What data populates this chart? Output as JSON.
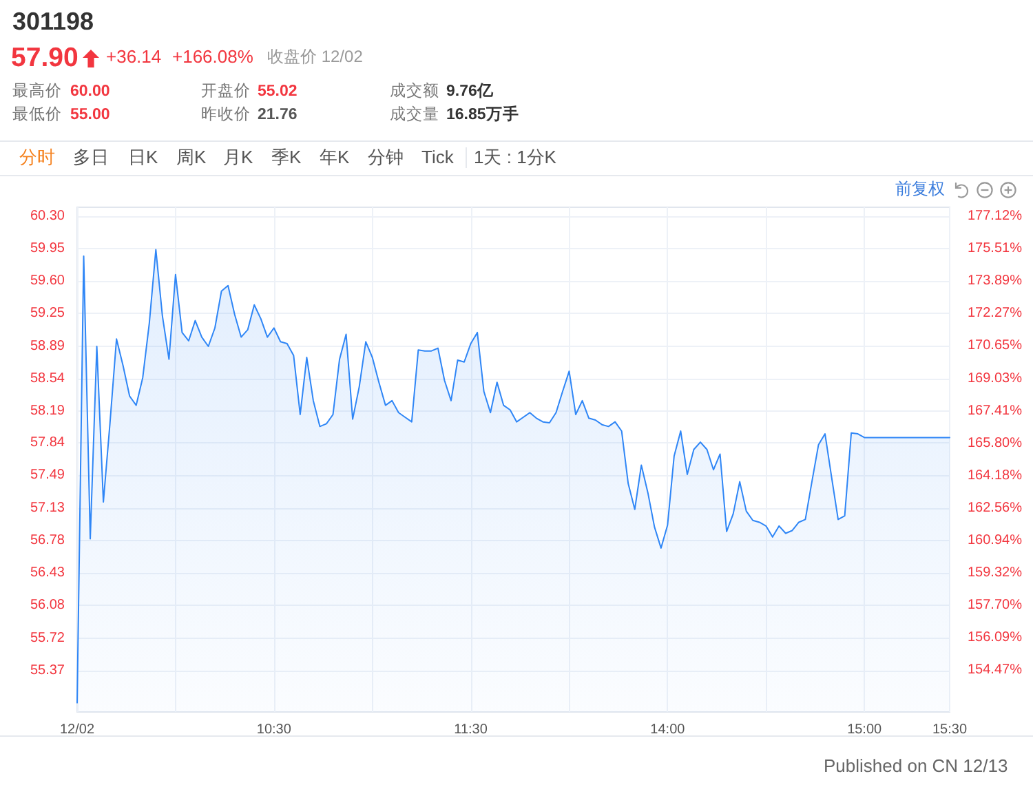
{
  "chart_data": {
    "type": "area",
    "title": "301198",
    "annotations": [
      "57.90",
      "+36.14",
      "+166.08%",
      "收盘价 12/02",
      "最高价",
      "60.00",
      "开盘价",
      "55.02",
      "成交额",
      "9.76亿",
      "最低价",
      "55.00",
      "昨收价",
      "21.76",
      "成交量",
      "16.85万手",
      "分时",
      "多日",
      "日K",
      "周K",
      "月K",
      "季K",
      "年K",
      "分钟",
      "Tick",
      "1天 : 1分K",
      "前复权",
      "Published on CN 12/13"
    ],
    "categories": [
      "12/02",
      null,
      null,
      null,
      null,
      null,
      null,
      null,
      null,
      null,
      null,
      null,
      null,
      null,
      null,
      null,
      null,
      null,
      null,
      null,
      null,
      null,
      null,
      null,
      null,
      null,
      null,
      null,
      null,
      null,
      "10:30",
      null,
      null,
      null,
      null,
      null,
      null,
      null,
      null,
      null,
      null,
      null,
      null,
      null,
      null,
      null,
      null,
      null,
      null,
      null,
      null,
      null,
      null,
      null,
      null,
      null,
      null,
      null,
      null,
      null,
      "11:30",
      null,
      null,
      null,
      null,
      null,
      null,
      null,
      null,
      null,
      null,
      null,
      null,
      null,
      null,
      null,
      null,
      null,
      null,
      null,
      null,
      null,
      null,
      null,
      null,
      null,
      null,
      null,
      null,
      null,
      "14:00",
      null,
      null,
      null,
      null,
      null,
      null,
      null,
      null,
      null,
      null,
      null,
      null,
      null,
      null,
      null,
      null,
      null,
      null,
      null,
      null,
      null,
      null,
      null,
      null,
      null,
      null,
      null,
      null,
      null,
      "15:00",
      null,
      null,
      null,
      null,
      null,
      null,
      null,
      null,
      null,
      null,
      null,
      null,
      "15:30"
    ],
    "values": [
      55.02,
      59.87,
      56.8,
      58.89,
      57.2,
      58.05,
      58.97,
      58.68,
      58.35,
      58.25,
      58.55,
      59.14,
      59.94,
      59.22,
      58.75,
      59.67,
      59.04,
      58.95,
      59.17,
      58.99,
      58.89,
      59.09,
      59.49,
      59.55,
      59.24,
      58.99,
      59.07,
      59.34,
      59.19,
      58.99,
      59.09,
      58.94,
      58.92,
      58.79,
      58.15,
      58.77,
      58.3,
      58.02,
      58.05,
      58.15,
      58.75,
      59.02,
      58.1,
      58.45,
      58.94,
      58.77,
      58.5,
      58.25,
      58.3,
      58.17,
      58.12,
      58.07,
      58.85,
      58.84,
      58.84,
      58.87,
      58.52,
      58.3,
      58.74,
      58.72,
      58.92,
      59.04,
      58.4,
      58.17,
      58.5,
      58.25,
      58.2,
      58.07,
      58.12,
      58.17,
      58.11,
      58.07,
      58.06,
      58.17,
      58.4,
      58.62,
      58.15,
      58.3,
      58.11,
      58.09,
      58.04,
      58.02,
      58.07,
      57.97,
      57.4,
      57.12,
      57.6,
      57.3,
      56.93,
      56.7,
      56.95,
      57.7,
      57.97,
      57.5,
      57.77,
      57.85,
      57.77,
      57.55,
      57.72,
      56.88,
      57.07,
      57.42,
      57.1,
      57.0,
      56.98,
      56.94,
      56.82,
      56.94,
      56.86,
      56.89,
      56.98,
      57.01,
      57.42,
      57.82,
      57.94,
      57.47,
      57.01,
      57.05,
      57.95,
      57.94,
      57.9,
      57.9,
      57.9,
      57.9,
      57.9,
      57.9,
      57.9,
      57.9,
      57.9,
      57.9,
      57.9,
      57.9,
      57.9,
      57.9
    ],
    "color": "#2f86f6",
    "marker": "none",
    "line_style": "solid",
    "ylim": [
      54.92,
      60.4
    ],
    "yticks": [
      {
        "value": 55.37,
        "label": "55.37"
      },
      {
        "value": 55.72,
        "label": "55.72"
      },
      {
        "value": 56.08,
        "label": "56.08"
      },
      {
        "value": 56.43,
        "label": "56.43"
      },
      {
        "value": 56.78,
        "label": "56.78"
      },
      {
        "value": 57.13,
        "label": "57.13"
      },
      {
        "value": 57.49,
        "label": "57.49"
      },
      {
        "value": 57.84,
        "label": "57.84"
      },
      {
        "value": 58.19,
        "label": "58.19"
      },
      {
        "value": 58.54,
        "label": "58.54"
      },
      {
        "value": 58.89,
        "label": "58.89"
      },
      {
        "value": 59.25,
        "label": "59.25"
      },
      {
        "value": 59.6,
        "label": "59.60"
      },
      {
        "value": 59.95,
        "label": "59.95"
      },
      {
        "value": 60.3,
        "label": "60.30"
      }
    ],
    "y2lim": [
      152.39,
      177.57
    ],
    "y2ticks": [
      {
        "value": 154.47,
        "label": "154.47%"
      },
      {
        "value": 156.09,
        "label": "156.09%"
      },
      {
        "value": 157.7,
        "label": "157.70%"
      },
      {
        "value": 159.32,
        "label": "159.32%"
      },
      {
        "value": 160.94,
        "label": "160.94%"
      },
      {
        "value": 162.56,
        "label": "162.56%"
      },
      {
        "value": 164.18,
        "label": "164.18%"
      },
      {
        "value": 165.8,
        "label": "165.80%"
      },
      {
        "value": 167.41,
        "label": "167.41%"
      },
      {
        "value": 169.03,
        "label": "169.03%"
      },
      {
        "value": 170.65,
        "label": "170.65%"
      },
      {
        "value": 172.27,
        "label": "172.27%"
      },
      {
        "value": 173.89,
        "label": "173.89%"
      },
      {
        "value": 175.51,
        "label": "175.51%"
      },
      {
        "value": 177.12,
        "label": "177.12%"
      }
    ],
    "grid": true
  }
}
